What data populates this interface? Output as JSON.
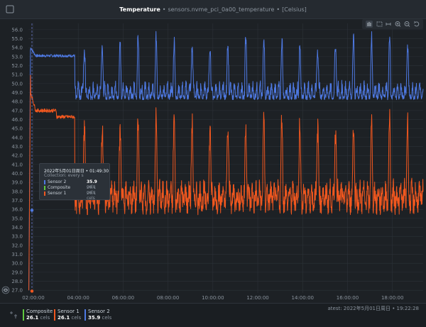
{
  "header": {
    "title": "Temperature",
    "separator": "•",
    "subtitle": "sensors.nvme_pci_0a00_temperature",
    "units": "[Celsius]",
    "icons": [
      "bell-icon",
      "shuffle-icon",
      "chart-type-icon",
      "more-icon"
    ]
  },
  "toolbar_icons": [
    "hand-icon",
    "selection-icon",
    "zoom-x-icon",
    "zoom-in-icon",
    "zoom-out-icon",
    "reset-icon"
  ],
  "colors": {
    "background": "#1d2125",
    "composite": "#5fc93e",
    "sensor1": "#f0571f",
    "sensor2": "#4e79e2",
    "grid": "#2c3238",
    "cursor": "#6a78c8"
  },
  "chart_data": {
    "type": "line",
    "ylim": [
      26.7,
      56.7
    ],
    "y_ticks": [
      "27.0",
      "28.0",
      "29.0",
      "30.0",
      "31.0",
      "32.0",
      "33.0",
      "34.0",
      "35.0",
      "36.0",
      "37.0",
      "38.0",
      "39.0",
      "40.0",
      "41.0",
      "42.0",
      "43.0",
      "44.0",
      "45.0",
      "46.0",
      "47.0",
      "48.0",
      "49.0",
      "50.0",
      "51.0",
      "52.0",
      "53.0",
      "54.0",
      "55.0",
      "56.0"
    ],
    "x_ticks": [
      "02:00:00",
      "04:00:00",
      "06:00:00",
      "08:00:00",
      "10:00:00",
      "12:00:00",
      "14:00:00",
      "16:00:00",
      "18:00:00"
    ],
    "x_range_hours": [
      1.78,
      19.37
    ],
    "grid": true,
    "cursor_time": "01:49:30",
    "series": [
      {
        "name": "Sensor 2",
        "color": "#4e79e2",
        "shape": "warmup-then-periodic",
        "warm_level": 53.1,
        "warm_peak": 56.7,
        "base": 48.8,
        "amp": [
          48.2,
          54.5
        ]
      },
      {
        "name": "Sensor 1",
        "color": "#f0571f",
        "shape": "warmup-then-periodic",
        "warm_level": 47.0,
        "warm_peak": 53.6,
        "base": 37.3,
        "amp": [
          35.4,
          45.5
        ]
      }
    ]
  },
  "tooltip": {
    "title": "2022年5月01日周日 • 01:49:30",
    "subtitle": "Collection: every s",
    "rows": [
      {
        "name": "Sensor 2",
        "value": "35.9",
        "unit": "cels",
        "color": "#4e79e2"
      },
      {
        "name": "Composite",
        "value": "26.1",
        "unit": "cels",
        "color": "#5fc93e"
      },
      {
        "name": "Sensor 1",
        "value": "26.1",
        "unit": "cels",
        "color": "#f0571f"
      }
    ]
  },
  "legend": {
    "items": [
      {
        "name": "Composite",
        "value": "26.1",
        "unit": "cels",
        "color": "#5fc93e"
      },
      {
        "name": "Sensor 1",
        "value": "26.1",
        "unit": "cels",
        "color": "#f0571f"
      },
      {
        "name": "Sensor 2",
        "value": "35.9",
        "unit": "cels",
        "color": "#4e79e2"
      }
    ],
    "latest": "atest: 2022年5月01日周日 • 19:22:28"
  }
}
